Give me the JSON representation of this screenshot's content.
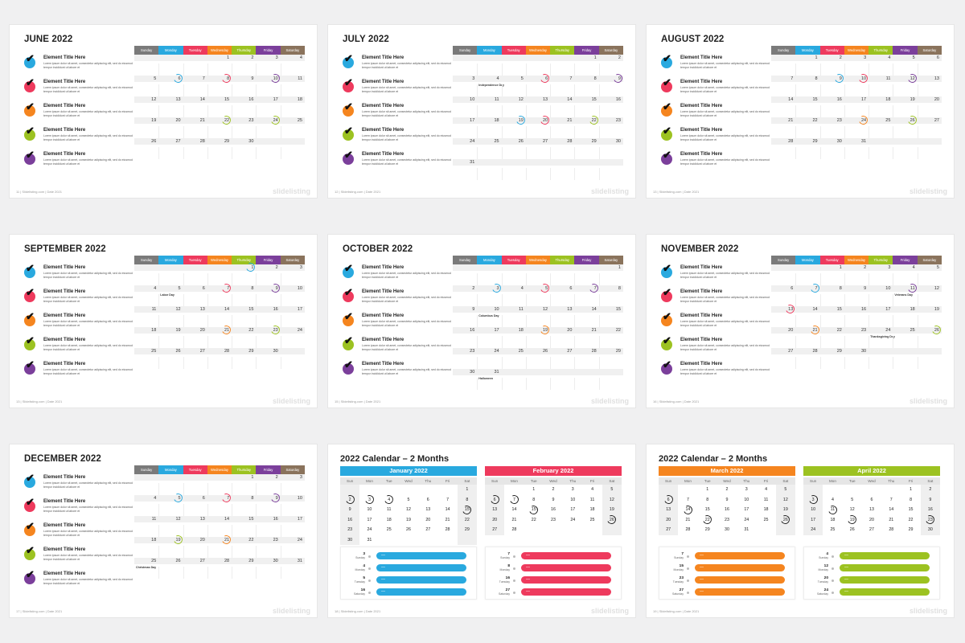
{
  "common": {
    "weekdays": [
      "Sunday",
      "Monday",
      "Tuesday",
      "Wednesday",
      "Thursday",
      "Friday",
      "Saturday"
    ],
    "weekday_colors": [
      "#7a7a7a",
      "#29a9df",
      "#ee3a5d",
      "#f5851f",
      "#9cc221",
      "#7b3f9b",
      "#8a735c"
    ],
    "item_colors": [
      "#29a9df",
      "#ee3a5d",
      "#f5851f",
      "#9cc221",
      "#7b3f9b"
    ],
    "item_title": "Element Title Here",
    "item_text": "Lorem ipsum dolor sit amet, consectetur adipiscing elit, sed do eiusmod tempor incididunt ut labore et",
    "check_glyph": "✔",
    "brand": "slidelisting",
    "footer_prefix": "| Slidelisting.com  | Date 2021"
  },
  "months": [
    {
      "title": "JUNE 2022",
      "page": "11",
      "start": 3,
      "days": 30,
      "rings": [
        {
          "d": 6,
          "c": "#29a9df"
        },
        {
          "d": 8,
          "c": "#ee3a5d"
        },
        {
          "d": 10,
          "c": "#7b3f9b"
        },
        {
          "d": 22,
          "c": "#9cc221"
        },
        {
          "d": 24,
          "c": "#9cc221"
        }
      ]
    },
    {
      "title": "JULY 2022",
      "page": "12",
      "start": 5,
      "days": 31,
      "rings": [
        {
          "d": 6,
          "c": "#ee3a5d"
        },
        {
          "d": 9,
          "c": "#7b3f9b"
        },
        {
          "d": 19,
          "c": "#29a9df"
        },
        {
          "d": 20,
          "c": "#ee3a5d"
        },
        {
          "d": 22,
          "c": "#9cc221"
        }
      ],
      "labels": [
        {
          "d": 4,
          "t": "Independence Day"
        }
      ]
    },
    {
      "title": "AUGUST 2022",
      "page": "13",
      "start": 1,
      "days": 31,
      "rings": [
        {
          "d": 9,
          "c": "#29a9df"
        },
        {
          "d": 10,
          "c": "#ee3a5d"
        },
        {
          "d": 12,
          "c": "#7b3f9b"
        },
        {
          "d": 24,
          "c": "#f5851f"
        },
        {
          "d": 26,
          "c": "#9cc221"
        }
      ]
    },
    {
      "title": "SEPTEMBER 2022",
      "page": "13",
      "start": 4,
      "days": 30,
      "rings": [
        {
          "d": 1,
          "c": "#29a9df"
        },
        {
          "d": 7,
          "c": "#ee3a5d"
        },
        {
          "d": 9,
          "c": "#7b3f9b"
        },
        {
          "d": 21,
          "c": "#f5851f"
        },
        {
          "d": 23,
          "c": "#9cc221"
        }
      ],
      "labels": [
        {
          "d": 5,
          "t": "Labor Day"
        }
      ]
    },
    {
      "title": "OCTOBER 2022",
      "page": "15",
      "start": 6,
      "days": 31,
      "rings": [
        {
          "d": 3,
          "c": "#29a9df"
        },
        {
          "d": 5,
          "c": "#ee3a5d"
        },
        {
          "d": 7,
          "c": "#7b3f9b"
        },
        {
          "d": 19,
          "c": "#f5851f"
        }
      ],
      "labels": [
        {
          "d": 10,
          "t": "Columbus Day"
        },
        {
          "d": 31,
          "t": "Halloween"
        }
      ]
    },
    {
      "title": "NOVEMBER 2022",
      "page": "16",
      "start": 2,
      "days": 30,
      "rings": [
        {
          "d": 7,
          "c": "#29a9df"
        },
        {
          "d": 11,
          "c": "#7b3f9b"
        },
        {
          "d": 13,
          "c": "#ee3a5d"
        },
        {
          "d": 21,
          "c": "#f5851f"
        },
        {
          "d": 26,
          "c": "#9cc221"
        }
      ],
      "labels": [
        {
          "d": 11,
          "t": "Veterans Day"
        },
        {
          "d": 24,
          "t": "Thanksgiving Day"
        }
      ]
    },
    {
      "title": "DECEMBER 2022",
      "page": "17",
      "start": 4,
      "days": 31,
      "rings": [
        {
          "d": 5,
          "c": "#29a9df"
        },
        {
          "d": 7,
          "c": "#ee3a5d"
        },
        {
          "d": 9,
          "c": "#7b3f9b"
        },
        {
          "d": 19,
          "c": "#9cc221"
        },
        {
          "d": 21,
          "c": "#f5851f"
        }
      ],
      "labels": [
        {
          "d": 25,
          "t": "Christmas Day"
        }
      ]
    }
  ],
  "two_month": [
    {
      "title": "2022 Calendar – 2 Months",
      "page": "18",
      "months": [
        {
          "name": "January 2022",
          "color": "#29a9df",
          "start": 6,
          "days": 31,
          "circled": [
            2,
            3,
            4,
            15
          ],
          "events": [
            {
              "d": "3",
              "w": "Sunday"
            },
            {
              "d": "4",
              "w": "Monday"
            },
            {
              "d": "5",
              "w": "Tuesday"
            },
            {
              "d": "16",
              "w": "Saturday"
            }
          ]
        },
        {
          "name": "February 2022",
          "color": "#ee3a5d",
          "start": 2,
          "days": 28,
          "circled": [
            6,
            7,
            15,
            26
          ],
          "events": [
            {
              "d": "7",
              "w": "Sunday"
            },
            {
              "d": "8",
              "w": "Monday"
            },
            {
              "d": "16",
              "w": "Tuesday"
            },
            {
              "d": "27",
              "w": "Saturday"
            }
          ]
        }
      ]
    },
    {
      "title": "2022 Calendar – 2 Months",
      "page": "19",
      "months": [
        {
          "name": "March 2022",
          "color": "#f5851f",
          "start": 2,
          "days": 31,
          "circled": [
            6,
            14,
            22,
            26
          ],
          "events": [
            {
              "d": "7",
              "w": "Sunday"
            },
            {
              "d": "15",
              "w": "Monday"
            },
            {
              "d": "23",
              "w": "Tuesday"
            },
            {
              "d": "27",
              "w": "Saturday"
            }
          ]
        },
        {
          "name": "April 2022",
          "color": "#9cc221",
          "start": 5,
          "days": 30,
          "circled": [
            3,
            11,
            19,
            23
          ],
          "events": [
            {
              "d": "4",
              "w": "Sunday"
            },
            {
              "d": "12",
              "w": "Monday"
            },
            {
              "d": "20",
              "w": "Tuesday"
            },
            {
              "d": "24",
              "w": "Saturday"
            }
          ]
        }
      ]
    }
  ],
  "two_month_days": [
    "Sun",
    "Mon",
    "Tue",
    "Wed",
    "Thu",
    "Fri",
    "Sat"
  ],
  "event_pill_text": "—"
}
